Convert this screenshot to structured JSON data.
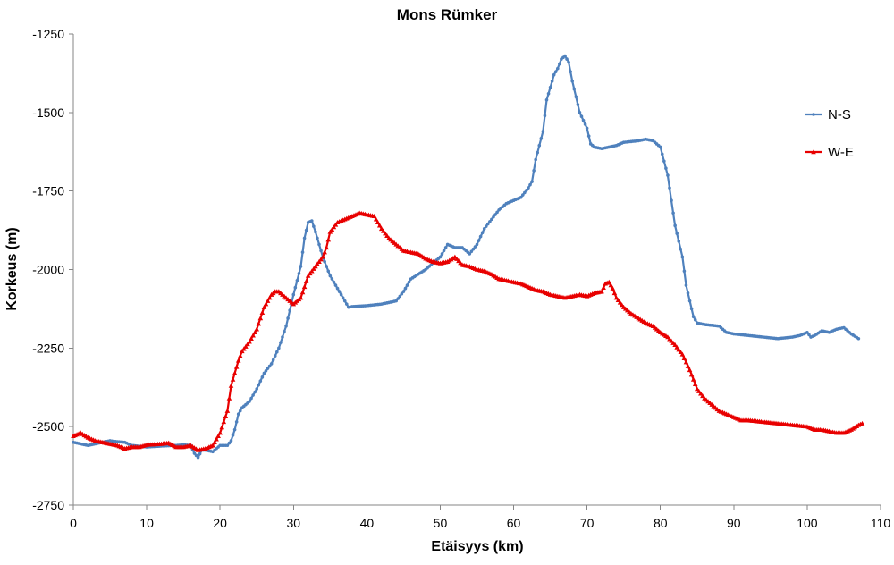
{
  "chart_data": {
    "type": "line",
    "title": "Mons Rümker",
    "xlabel": "Etäisyys (km)",
    "ylabel": "Korkeus (m)",
    "xlim": [
      0,
      110
    ],
    "ylim": [
      -2750,
      -1250
    ],
    "x_ticks": [
      "0",
      "10",
      "20",
      "30",
      "40",
      "50",
      "60",
      "70",
      "80",
      "90",
      "100",
      "110"
    ],
    "y_ticks": [
      "-1250",
      "-1500",
      "-1750",
      "-2000",
      "-2250",
      "-2500",
      "-2750"
    ],
    "grid": false,
    "legend_position": "right",
    "series": [
      {
        "name": "N-S",
        "color": "#4F81BD",
        "marker": "circle",
        "points": [
          [
            0,
            -2550
          ],
          [
            1,
            -2555
          ],
          [
            2,
            -2560
          ],
          [
            3,
            -2555
          ],
          [
            4,
            -2550
          ],
          [
            5,
            -2545
          ],
          [
            6,
            -2548
          ],
          [
            7,
            -2550
          ],
          [
            8,
            -2560
          ],
          [
            10,
            -2565
          ],
          [
            12,
            -2562
          ],
          [
            14,
            -2560
          ],
          [
            15,
            -2558
          ],
          [
            16,
            -2560
          ],
          [
            16.5,
            -2585
          ],
          [
            17,
            -2598
          ],
          [
            17.5,
            -2575
          ],
          [
            18,
            -2575
          ],
          [
            19,
            -2580
          ],
          [
            20,
            -2560
          ],
          [
            21,
            -2560
          ],
          [
            21.5,
            -2545
          ],
          [
            22,
            -2510
          ],
          [
            22.5,
            -2460
          ],
          [
            23,
            -2440
          ],
          [
            24,
            -2420
          ],
          [
            25,
            -2380
          ],
          [
            26,
            -2330
          ],
          [
            27,
            -2300
          ],
          [
            28,
            -2250
          ],
          [
            29,
            -2180
          ],
          [
            30,
            -2080
          ],
          [
            31,
            -1990
          ],
          [
            31.5,
            -1900
          ],
          [
            32,
            -1850
          ],
          [
            32.5,
            -1845
          ],
          [
            33,
            -1880
          ],
          [
            34,
            -1960
          ],
          [
            35,
            -2020
          ],
          [
            36,
            -2060
          ],
          [
            37,
            -2100
          ],
          [
            37.5,
            -2120
          ],
          [
            38,
            -2118
          ],
          [
            40,
            -2115
          ],
          [
            42,
            -2110
          ],
          [
            44,
            -2100
          ],
          [
            45,
            -2070
          ],
          [
            46,
            -2030
          ],
          [
            47,
            -2015
          ],
          [
            48,
            -2000
          ],
          [
            49,
            -1980
          ],
          [
            50,
            -1960
          ],
          [
            51,
            -1920
          ],
          [
            52,
            -1930
          ],
          [
            53,
            -1930
          ],
          [
            54,
            -1950
          ],
          [
            55,
            -1920
          ],
          [
            56,
            -1870
          ],
          [
            57,
            -1840
          ],
          [
            58,
            -1810
          ],
          [
            59,
            -1790
          ],
          [
            60,
            -1780
          ],
          [
            61,
            -1770
          ],
          [
            62,
            -1740
          ],
          [
            62.5,
            -1720
          ],
          [
            63,
            -1650
          ],
          [
            64,
            -1560
          ],
          [
            64.5,
            -1460
          ],
          [
            65,
            -1420
          ],
          [
            65.5,
            -1380
          ],
          [
            66,
            -1360
          ],
          [
            66.5,
            -1330
          ],
          [
            67,
            -1320
          ],
          [
            67.5,
            -1340
          ],
          [
            68,
            -1400
          ],
          [
            69,
            -1500
          ],
          [
            70,
            -1550
          ],
          [
            70.5,
            -1600
          ],
          [
            71,
            -1610
          ],
          [
            72,
            -1615
          ],
          [
            73,
            -1610
          ],
          [
            74,
            -1605
          ],
          [
            75,
            -1595
          ],
          [
            77,
            -1590
          ],
          [
            78,
            -1585
          ],
          [
            79,
            -1590
          ],
          [
            80,
            -1610
          ],
          [
            81,
            -1700
          ],
          [
            82,
            -1860
          ],
          [
            83,
            -1960
          ],
          [
            83.5,
            -2050
          ],
          [
            84,
            -2100
          ],
          [
            84.5,
            -2150
          ],
          [
            85,
            -2170
          ],
          [
            86,
            -2175
          ],
          [
            88,
            -2180
          ],
          [
            89,
            -2200
          ],
          [
            90,
            -2205
          ],
          [
            92,
            -2210
          ],
          [
            94,
            -2215
          ],
          [
            96,
            -2220
          ],
          [
            98,
            -2215
          ],
          [
            99,
            -2210
          ],
          [
            100,
            -2200
          ],
          [
            100.5,
            -2215
          ],
          [
            101,
            -2210
          ],
          [
            102,
            -2195
          ],
          [
            103,
            -2200
          ],
          [
            104,
            -2190
          ],
          [
            105,
            -2185
          ],
          [
            106,
            -2205
          ],
          [
            107,
            -2220
          ]
        ]
      },
      {
        "name": "W-E",
        "color": "#E80000",
        "marker": "triangle",
        "points": [
          [
            0,
            -2530
          ],
          [
            0.5,
            -2525
          ],
          [
            1,
            -2520
          ],
          [
            2,
            -2535
          ],
          [
            3,
            -2545
          ],
          [
            4,
            -2550
          ],
          [
            5,
            -2555
          ],
          [
            6,
            -2560
          ],
          [
            7,
            -2570
          ],
          [
            8,
            -2565
          ],
          [
            9,
            -2565
          ],
          [
            10,
            -2558
          ],
          [
            12,
            -2555
          ],
          [
            13,
            -2552
          ],
          [
            14,
            -2565
          ],
          [
            15,
            -2565
          ],
          [
            16,
            -2560
          ],
          [
            17,
            -2575
          ],
          [
            18,
            -2570
          ],
          [
            19,
            -2560
          ],
          [
            20,
            -2520
          ],
          [
            21,
            -2450
          ],
          [
            21.5,
            -2370
          ],
          [
            22,
            -2330
          ],
          [
            22.5,
            -2290
          ],
          [
            23,
            -2260
          ],
          [
            24,
            -2230
          ],
          [
            25,
            -2190
          ],
          [
            26,
            -2120
          ],
          [
            27,
            -2080
          ],
          [
            27.5,
            -2070
          ],
          [
            28,
            -2070
          ],
          [
            29,
            -2090
          ],
          [
            30,
            -2110
          ],
          [
            31,
            -2090
          ],
          [
            32,
            -2020
          ],
          [
            33,
            -1990
          ],
          [
            34,
            -1960
          ],
          [
            34.5,
            -1930
          ],
          [
            35,
            -1880
          ],
          [
            36,
            -1850
          ],
          [
            37,
            -1840
          ],
          [
            38,
            -1830
          ],
          [
            39,
            -1820
          ],
          [
            40,
            -1825
          ],
          [
            41,
            -1830
          ],
          [
            42,
            -1870
          ],
          [
            43,
            -1900
          ],
          [
            44,
            -1920
          ],
          [
            45,
            -1940
          ],
          [
            46,
            -1945
          ],
          [
            47,
            -1950
          ],
          [
            48,
            -1965
          ],
          [
            49,
            -1975
          ],
          [
            50,
            -1980
          ],
          [
            51,
            -1975
          ],
          [
            52,
            -1960
          ],
          [
            53,
            -1985
          ],
          [
            54,
            -1990
          ],
          [
            55,
            -2000
          ],
          [
            56,
            -2005
          ],
          [
            57,
            -2015
          ],
          [
            58,
            -2030
          ],
          [
            59,
            -2035
          ],
          [
            60,
            -2040
          ],
          [
            61,
            -2045
          ],
          [
            62,
            -2055
          ],
          [
            63,
            -2065
          ],
          [
            64,
            -2070
          ],
          [
            65,
            -2080
          ],
          [
            66,
            -2085
          ],
          [
            67,
            -2090
          ],
          [
            68,
            -2085
          ],
          [
            69,
            -2080
          ],
          [
            70,
            -2085
          ],
          [
            71,
            -2075
          ],
          [
            72,
            -2070
          ],
          [
            72.5,
            -2045
          ],
          [
            73,
            -2040
          ],
          [
            73.5,
            -2060
          ],
          [
            74,
            -2090
          ],
          [
            75,
            -2120
          ],
          [
            76,
            -2140
          ],
          [
            77,
            -2155
          ],
          [
            78,
            -2170
          ],
          [
            79,
            -2180
          ],
          [
            80,
            -2200
          ],
          [
            81,
            -2215
          ],
          [
            82,
            -2240
          ],
          [
            83,
            -2270
          ],
          [
            84,
            -2320
          ],
          [
            85,
            -2380
          ],
          [
            86,
            -2410
          ],
          [
            87,
            -2430
          ],
          [
            88,
            -2450
          ],
          [
            89,
            -2460
          ],
          [
            90,
            -2470
          ],
          [
            91,
            -2480
          ],
          [
            92,
            -2480
          ],
          [
            94,
            -2485
          ],
          [
            96,
            -2490
          ],
          [
            98,
            -2495
          ],
          [
            100,
            -2500
          ],
          [
            101,
            -2510
          ],
          [
            102,
            -2510
          ],
          [
            103,
            -2515
          ],
          [
            104,
            -2520
          ],
          [
            105,
            -2520
          ],
          [
            106,
            -2510
          ],
          [
            107,
            -2495
          ],
          [
            107.5,
            -2490
          ]
        ]
      }
    ]
  }
}
